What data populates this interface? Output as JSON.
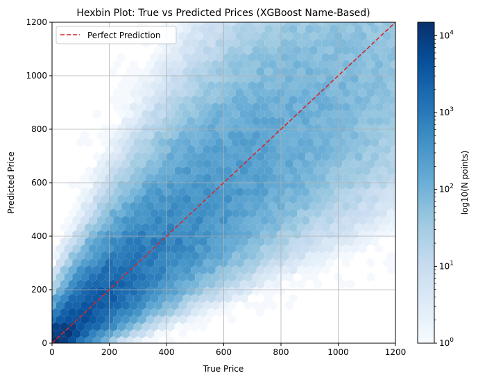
{
  "chart_data": {
    "type": "heatmap",
    "plot_kind": "hexbin",
    "title": "Hexbin Plot: True vs Predicted Prices (XGBoost Name-Based)",
    "xlabel": "True Price",
    "ylabel": "Predicted Price",
    "xlim": [
      0,
      1200
    ],
    "ylim": [
      0,
      1200
    ],
    "xticks": [
      0,
      200,
      400,
      600,
      800,
      1000,
      1200
    ],
    "yticks": [
      0,
      200,
      400,
      600,
      800,
      1000,
      1200
    ],
    "grid": true,
    "colormap": "Blues",
    "colorbar": {
      "label": "log10(N points)",
      "scale": "log",
      "range": [
        1,
        15000
      ],
      "tick_labels": [
        "10^0",
        "10^1",
        "10^2",
        "10^3",
        "10^4"
      ]
    },
    "reference_line": {
      "name": "Perfect Prediction",
      "from": [
        0,
        0
      ],
      "to": [
        1200,
        1200
      ],
      "style": "dashed",
      "color": "#d62728"
    },
    "legend": {
      "placement": "upper-left",
      "entries": [
        "Perfect Prediction"
      ]
    },
    "density_profile": [
      {
        "x": 0,
        "y": 0,
        "count": 15000
      },
      {
        "x": 100,
        "y": 100,
        "count": 5000
      },
      {
        "x": 200,
        "y": 200,
        "count": 2500
      },
      {
        "x": 300,
        "y": 300,
        "count": 1200
      },
      {
        "x": 400,
        "y": 400,
        "count": 700
      },
      {
        "x": 500,
        "y": 500,
        "count": 450
      },
      {
        "x": 600,
        "y": 600,
        "count": 300
      },
      {
        "x": 800,
        "y": 800,
        "count": 150
      },
      {
        "x": 1000,
        "y": 1000,
        "count": 80
      },
      {
        "x": 1200,
        "y": 1200,
        "count": 40
      }
    ]
  }
}
